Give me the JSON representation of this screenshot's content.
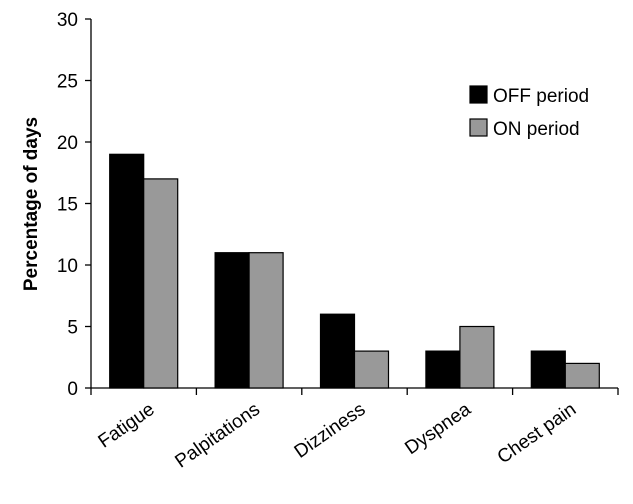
{
  "chart_data": {
    "type": "bar",
    "title": "",
    "xlabel": "",
    "ylabel": "Percentage of days",
    "ylim": [
      0,
      30
    ],
    "yticks": [
      0,
      5,
      10,
      15,
      20,
      25,
      30
    ],
    "grid": false,
    "legend_position": "top-right",
    "categories": [
      "Fatigue",
      "Palpitations",
      "Dizziness",
      "Dyspnea",
      "Chest pain"
    ],
    "series": [
      {
        "name": "OFF period",
        "color": "#000000",
        "values": [
          19,
          11,
          6,
          3,
          3
        ]
      },
      {
        "name": "ON period",
        "color": "#999999",
        "values": [
          17,
          11,
          3,
          5,
          2
        ]
      }
    ]
  }
}
